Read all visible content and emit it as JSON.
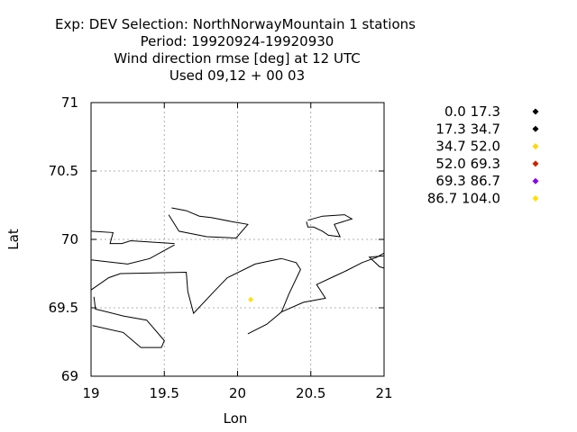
{
  "title_lines": [
    "Exp: DEV   Selection: NorthNorwayMountain      1 stations",
    "Period: 19920924-19920930",
    "Wind direction rmse [deg] at  12 UTC",
    "Used  09,12  + 00 03"
  ],
  "axes": {
    "xlabel": "Lon",
    "ylabel": "Lat",
    "xlim": [
      19,
      21
    ],
    "ylim": [
      69,
      71
    ],
    "xticks": [
      19,
      19.5,
      20,
      20.5,
      21
    ],
    "yticks": [
      69,
      69.5,
      70,
      70.5,
      71
    ],
    "xtick_labels": [
      "19",
      "19.5",
      "20",
      "20.5",
      "21"
    ],
    "ytick_labels": [
      "69",
      "69.5",
      "70",
      "70.5",
      "71"
    ],
    "grid": true
  },
  "legend": {
    "placement": "right",
    "items": [
      {
        "label": "0.0 17.3",
        "color": "#000000"
      },
      {
        "label": "17.3 34.7",
        "color": "#000000"
      },
      {
        "label": "34.7 52.0",
        "color": "#ffd700"
      },
      {
        "label": "52.0 69.3",
        "color": "#cc2200"
      },
      {
        "label": "69.3 86.7",
        "color": "#8a00e6"
      },
      {
        "label": "86.7 104.0",
        "color": "#ffe000"
      }
    ]
  },
  "chart_data": {
    "type": "scatter",
    "points": [
      {
        "lon": 20.09,
        "lat": 69.56,
        "color": "#ffe000",
        "class": "86.7 104.0"
      }
    ]
  },
  "coastlines": [
    [
      [
        19.0,
        70.06
      ],
      [
        19.15,
        70.05
      ],
      [
        19.13,
        69.97
      ],
      [
        19.21,
        69.97
      ],
      [
        19.27,
        69.99
      ],
      [
        19.57,
        69.97
      ]
    ],
    [
      [
        19.0,
        69.85
      ],
      [
        19.25,
        69.82
      ],
      [
        19.4,
        69.86
      ],
      [
        19.57,
        69.96
      ]
    ],
    [
      [
        19.0,
        69.63
      ],
      [
        19.12,
        69.72
      ],
      [
        19.2,
        69.75
      ],
      [
        19.65,
        69.76
      ],
      [
        19.66,
        69.62
      ],
      [
        19.7,
        69.46
      ],
      [
        19.84,
        69.62
      ],
      [
        19.93,
        69.72
      ],
      [
        20.12,
        69.82
      ],
      [
        20.3,
        69.86
      ]
    ],
    [
      [
        19.02,
        69.58
      ],
      [
        19.03,
        69.49
      ],
      [
        19.07,
        69.48
      ],
      [
        19.22,
        69.44
      ],
      [
        19.38,
        69.41
      ],
      [
        19.5,
        69.26
      ],
      [
        19.48,
        69.21
      ],
      [
        19.34,
        69.21
      ],
      [
        19.22,
        69.32
      ],
      [
        19.01,
        69.37
      ]
    ],
    [
      [
        19.55,
        70.23
      ],
      [
        19.65,
        70.21
      ],
      [
        19.74,
        70.17
      ],
      [
        19.82,
        70.16
      ],
      [
        19.96,
        70.13
      ],
      [
        20.07,
        70.11
      ],
      [
        19.99,
        70.01
      ],
      [
        19.79,
        70.02
      ],
      [
        19.6,
        70.06
      ],
      [
        19.53,
        70.18
      ]
    ],
    [
      [
        20.48,
        70.14
      ],
      [
        20.58,
        70.17
      ],
      [
        20.73,
        70.18
      ],
      [
        20.78,
        70.15
      ],
      [
        20.66,
        70.11
      ],
      [
        20.7,
        70.02
      ],
      [
        20.62,
        70.03
      ],
      [
        20.58,
        70.06
      ],
      [
        20.52,
        70.09
      ],
      [
        20.48,
        70.09
      ],
      [
        20.47,
        70.13
      ]
    ],
    [
      [
        20.07,
        69.31
      ],
      [
        20.2,
        69.38
      ],
      [
        20.3,
        69.47
      ],
      [
        20.45,
        69.54
      ],
      [
        20.6,
        69.57
      ],
      [
        20.54,
        69.67
      ],
      [
        20.66,
        69.73
      ],
      [
        20.74,
        69.77
      ],
      [
        20.85,
        69.83
      ],
      [
        20.95,
        69.87
      ],
      [
        21.0,
        69.9
      ]
    ],
    [
      [
        21.0,
        69.88
      ],
      [
        20.9,
        69.87
      ],
      [
        20.97,
        69.8
      ],
      [
        21.0,
        69.79
      ]
    ],
    [
      [
        20.3,
        69.86
      ],
      [
        20.4,
        69.83
      ],
      [
        20.43,
        69.78
      ],
      [
        20.35,
        69.6
      ],
      [
        20.3,
        69.47
      ]
    ]
  ]
}
